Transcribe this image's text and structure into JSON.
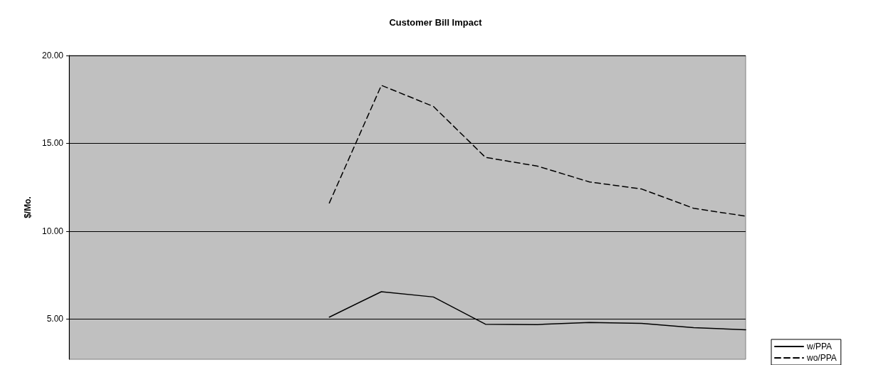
{
  "chart_data": {
    "type": "line",
    "title": "Customer Bill Impact",
    "ylabel": "$/Mo.",
    "categories": [
      null,
      null,
      null,
      null,
      null,
      null,
      null,
      null,
      null,
      null,
      null,
      null,
      null,
      null
    ],
    "series": [
      {
        "name": "w/PPA",
        "color": "#000000",
        "line_style": "solid",
        "values": [
          null,
          null,
          null,
          null,
          null,
          5.1,
          6.55,
          6.25,
          4.7,
          4.68,
          4.8,
          4.75,
          4.5,
          4.38
        ]
      },
      {
        "name": "wo/PPA",
        "color": "#000000",
        "line_style": "dashed",
        "values": [
          null,
          null,
          null,
          null,
          null,
          11.6,
          18.3,
          17.1,
          14.2,
          13.7,
          12.8,
          12.4,
          11.3,
          10.85
        ]
      }
    ],
    "ylim": [
      2.7,
      20
    ],
    "yticks": [
      {
        "value": 5,
        "label": "5.00"
      },
      {
        "value": 10,
        "label": "10.00"
      },
      {
        "value": 15,
        "label": "15.00"
      },
      {
        "value": 20,
        "label": "20.00"
      }
    ],
    "grid": "y",
    "legend": "right",
    "marker": "none"
  }
}
